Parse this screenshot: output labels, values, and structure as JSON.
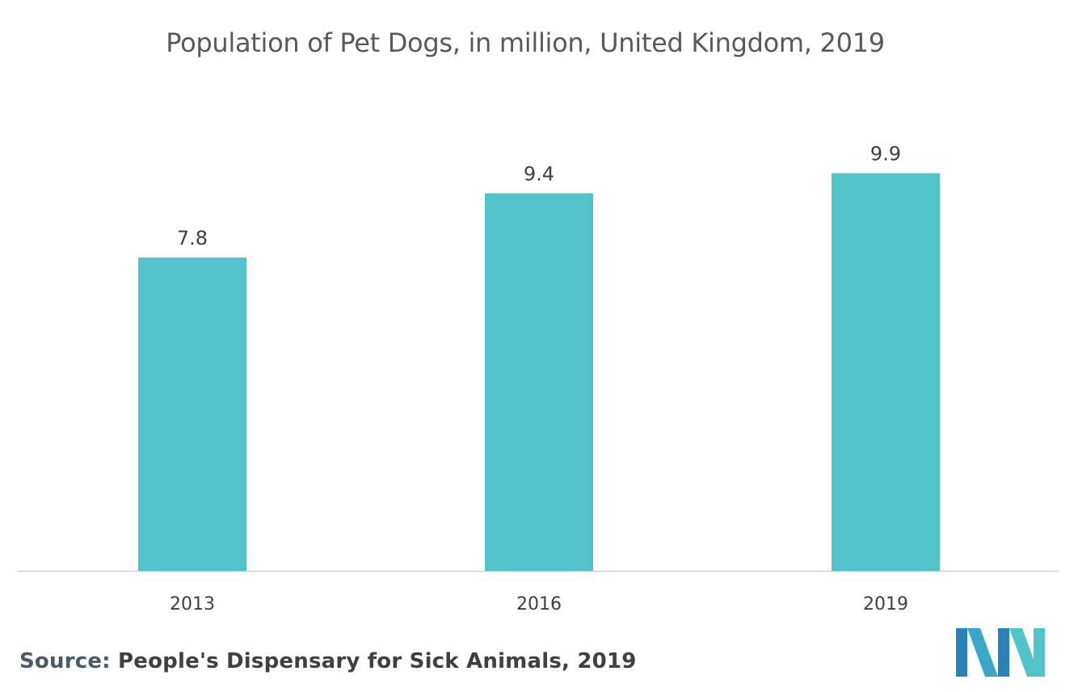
{
  "chart_data": {
    "type": "bar",
    "title": "Population of Pet Dogs, in million, United Kingdom, 2019",
    "categories": [
      "2013",
      "2016",
      "2019"
    ],
    "values": [
      7.8,
      9.4,
      9.9
    ],
    "value_labels": [
      "7.8",
      "9.4",
      "9.9"
    ],
    "xlabel": "",
    "ylabel": "",
    "ylim": [
      0,
      12
    ],
    "grid": false,
    "legend": "none",
    "bar_color": "#52c4c9",
    "axis_color": "#d0d0d0"
  },
  "source": {
    "prefix": "Source:",
    "text": "People's Dispensary for Sick Animals, 2019"
  },
  "logo": {
    "name": "brand-logo",
    "colors": [
      "#2a82b8",
      "#52c4c9"
    ]
  }
}
